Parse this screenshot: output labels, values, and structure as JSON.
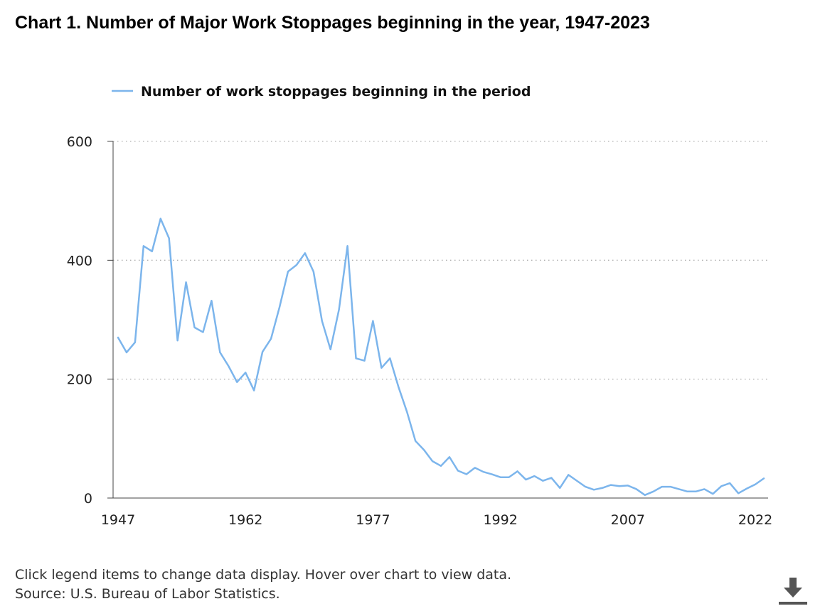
{
  "chart_data": {
    "type": "line",
    "title": "Chart 1. Number of Major Work Stoppages beginning in the year, 1947-2023",
    "xlabel": "",
    "ylabel": "",
    "xlim": [
      1947,
      2023
    ],
    "ylim": [
      0,
      600
    ],
    "xticks": [
      "1947",
      "1962",
      "1977",
      "1992",
      "2007",
      "2022"
    ],
    "yticks": [
      "0",
      "200",
      "400",
      "600"
    ],
    "grid": true,
    "legend_position": "top-left",
    "x": [
      1947,
      1948,
      1949,
      1950,
      1951,
      1952,
      1953,
      1954,
      1955,
      1956,
      1957,
      1958,
      1959,
      1960,
      1961,
      1962,
      1963,
      1964,
      1965,
      1966,
      1967,
      1968,
      1969,
      1970,
      1971,
      1972,
      1973,
      1974,
      1975,
      1976,
      1977,
      1978,
      1979,
      1980,
      1981,
      1982,
      1983,
      1984,
      1985,
      1986,
      1987,
      1988,
      1989,
      1990,
      1991,
      1992,
      1993,
      1994,
      1995,
      1996,
      1997,
      1998,
      1999,
      2000,
      2001,
      2002,
      2003,
      2004,
      2005,
      2006,
      2007,
      2008,
      2009,
      2010,
      2011,
      2012,
      2013,
      2014,
      2015,
      2016,
      2017,
      2018,
      2019,
      2020,
      2021,
      2022,
      2023
    ],
    "series": [
      {
        "name": "Number of work stoppages beginning in the period",
        "color": "#7cb5ec",
        "values": [
          270,
          245,
          262,
          424,
          415,
          470,
          437,
          265,
          363,
          287,
          279,
          332,
          245,
          222,
          195,
          211,
          181,
          246,
          268,
          321,
          381,
          392,
          412,
          381,
          298,
          250,
          317,
          424,
          235,
          231,
          298,
          219,
          235,
          187,
          145,
          96,
          81,
          62,
          54,
          69,
          46,
          40,
          51,
          44,
          40,
          35,
          35,
          45,
          31,
          37,
          29,
          34,
          17,
          39,
          29,
          19,
          14,
          17,
          22,
          20,
          21,
          15,
          5,
          11,
          19,
          19,
          15,
          11,
          11,
          15,
          7,
          20,
          25,
          8,
          16,
          23,
          33
        ]
      }
    ]
  },
  "footer": {
    "line1": "Click legend items to change data display. Hover over chart to view data.",
    "line2": "Source: U.S. Bureau of Labor Statistics."
  },
  "icons": {
    "download": "download-icon"
  },
  "colors": {
    "series": "#7cb5ec",
    "axis": "#444444",
    "grid": "#b0b0b0",
    "icon": "#555555"
  }
}
